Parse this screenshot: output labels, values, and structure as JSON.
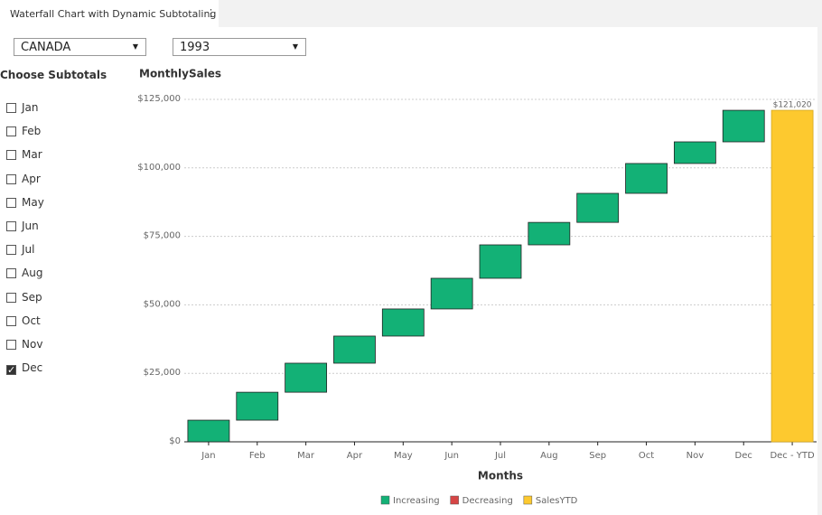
{
  "tab": {
    "title": "Waterfall Chart with Dynamic Subtotaling"
  },
  "controls": {
    "country": "CANADA",
    "year": "1993"
  },
  "subtotals": {
    "title": "Choose Subtotals",
    "items": [
      {
        "label": "Jan",
        "checked": false
      },
      {
        "label": "Feb",
        "checked": false
      },
      {
        "label": "Mar",
        "checked": false
      },
      {
        "label": "Apr",
        "checked": false
      },
      {
        "label": "May",
        "checked": false
      },
      {
        "label": "Jun",
        "checked": false
      },
      {
        "label": "Jul",
        "checked": false
      },
      {
        "label": "Aug",
        "checked": false
      },
      {
        "label": "Sep",
        "checked": false
      },
      {
        "label": "Oct",
        "checked": false
      },
      {
        "label": "Nov",
        "checked": false
      },
      {
        "label": "Dec",
        "checked": true
      }
    ]
  },
  "chart_data": {
    "type": "waterfall",
    "title": "MonthlySales",
    "x_label": "Months",
    "categories": [
      "Jan",
      "Feb",
      "Mar",
      "Apr",
      "May",
      "Jun",
      "Jul",
      "Aug",
      "Sep",
      "Oct",
      "Nov",
      "Dec",
      "Dec - YTD"
    ],
    "series": [
      {
        "name": "Increasing",
        "color": "#13b176",
        "values": [
          7900,
          10200,
          10600,
          9900,
          9900,
          11200,
          12200,
          8200,
          10600,
          10900,
          7900,
          11520,
          null
        ]
      },
      {
        "name": "Decreasing",
        "color": "#d64545",
        "values": [
          null,
          null,
          null,
          null,
          null,
          null,
          null,
          null,
          null,
          null,
          null,
          null,
          null
        ]
      },
      {
        "name": "SalesYTD",
        "color": "#fdc92f",
        "values": [
          null,
          null,
          null,
          null,
          null,
          null,
          null,
          null,
          null,
          null,
          null,
          null,
          121020
        ],
        "value_labels": [
          null,
          null,
          null,
          null,
          null,
          null,
          null,
          null,
          null,
          null,
          null,
          null,
          "$121,020"
        ]
      }
    ],
    "ylim": [
      0,
      125000
    ],
    "yticks": [
      {
        "value": 0,
        "label": "$0"
      },
      {
        "value": 25000,
        "label": "$25,000"
      },
      {
        "value": 50000,
        "label": "$50,000"
      },
      {
        "value": 75000,
        "label": "$75,000"
      },
      {
        "value": 100000,
        "label": "$100,000"
      },
      {
        "value": 125000,
        "label": "$125,000"
      }
    ],
    "grid": true
  }
}
